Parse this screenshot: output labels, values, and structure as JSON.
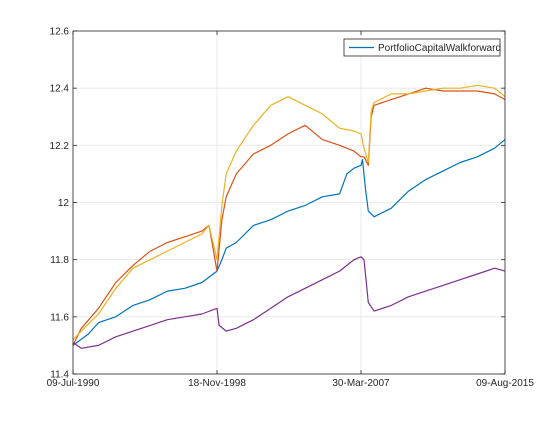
{
  "chart_data": {
    "type": "line",
    "title": "",
    "xlabel": "",
    "ylabel": "",
    "x_tick_labels": [
      "09-Jul-1990",
      "18-Nov-1998",
      "30-Mar-2007",
      "09-Aug-2015"
    ],
    "x_ticks": [
      "1990-07-09",
      "1998-11-18",
      "2007-03-30",
      "2015-08-09"
    ],
    "xlim": [
      "1990-07-09",
      "2015-08-09"
    ],
    "ylim": [
      11.4,
      12.6
    ],
    "y_ticks": [
      11.4,
      11.6,
      11.8,
      12,
      12.2,
      12.4,
      12.6
    ],
    "y_tick_labels": [
      "11.4",
      "11.6",
      "11.8",
      "12",
      "12.2",
      "12.4",
      "12.6"
    ],
    "grid": true,
    "legend_position": "top-right",
    "legend": [
      "PortfolioCapitalWalkforward"
    ],
    "series": [
      {
        "name": "PortfolioCapitalWalkforward",
        "color": "#0072BD",
        "x": [
          "1990-07-09",
          "1991-06-01",
          "1992-01-01",
          "1993-01-01",
          "1994-01-01",
          "1995-01-01",
          "1996-01-01",
          "1997-01-01",
          "1998-01-01",
          "1998-11-18",
          "1999-03-01",
          "1999-06-01",
          "2000-01-01",
          "2001-01-01",
          "2002-01-01",
          "2003-01-01",
          "2004-01-01",
          "2005-01-01",
          "2006-01-01",
          "2006-06-01",
          "2006-11-01",
          "2007-03-30",
          "2007-05-01",
          "2007-07-01",
          "2007-09-01",
          "2008-01-01",
          "2009-01-01",
          "2010-01-01",
          "2011-01-01",
          "2012-01-01",
          "2013-01-01",
          "2014-01-01",
          "2015-01-01",
          "2015-08-09"
        ],
        "values": [
          11.5,
          11.54,
          11.58,
          11.6,
          11.64,
          11.66,
          11.69,
          11.7,
          11.72,
          11.76,
          11.8,
          11.84,
          11.86,
          11.92,
          11.94,
          11.97,
          11.99,
          12.02,
          12.03,
          12.1,
          12.12,
          12.13,
          12.15,
          12.05,
          11.97,
          11.95,
          11.98,
          12.04,
          12.08,
          12.11,
          12.14,
          12.16,
          12.19,
          12.22
        ]
      },
      {
        "name": "",
        "color": "#D95319",
        "x": [
          "1990-07-09",
          "1991-01-01",
          "1992-01-01",
          "1993-01-01",
          "1994-01-01",
          "1995-01-01",
          "1996-01-01",
          "1997-01-01",
          "1998-01-01",
          "1998-06-01",
          "1998-11-18",
          "1999-03-01",
          "1999-06-01",
          "2000-01-01",
          "2001-01-01",
          "2002-01-01",
          "2003-01-01",
          "2004-01-01",
          "2005-01-01",
          "2006-01-01",
          "2006-11-01",
          "2007-03-30",
          "2007-06-01",
          "2007-09-01",
          "2007-11-01",
          "2008-01-01",
          "2009-01-01",
          "2010-01-01",
          "2011-01-01",
          "2012-01-01",
          "2013-01-01",
          "2014-01-01",
          "2015-01-01",
          "2015-08-09"
        ],
        "values": [
          11.5,
          11.56,
          11.63,
          11.72,
          11.78,
          11.83,
          11.86,
          11.88,
          11.9,
          11.92,
          11.76,
          11.94,
          12.02,
          12.1,
          12.17,
          12.2,
          12.24,
          12.27,
          12.22,
          12.2,
          12.18,
          12.16,
          12.16,
          12.13,
          12.3,
          12.34,
          12.36,
          12.38,
          12.4,
          12.39,
          12.39,
          12.39,
          12.38,
          12.36
        ]
      },
      {
        "name": "",
        "color": "#EDB120",
        "x": [
          "1990-07-09",
          "1991-01-01",
          "1992-01-01",
          "1993-01-01",
          "1994-01-01",
          "1995-01-01",
          "1996-01-01",
          "1997-01-01",
          "1998-01-01",
          "1998-06-01",
          "1998-11-18",
          "1999-03-01",
          "1999-06-01",
          "2000-01-01",
          "2001-01-01",
          "2002-01-01",
          "2003-01-01",
          "2004-01-01",
          "2005-01-01",
          "2006-01-01",
          "2006-11-01",
          "2007-03-30",
          "2007-06-01",
          "2007-09-01",
          "2007-11-01",
          "2008-01-01",
          "2009-01-01",
          "2010-01-01",
          "2011-01-01",
          "2012-01-01",
          "2013-01-01",
          "2014-01-01",
          "2015-01-01",
          "2015-08-09"
        ],
        "values": [
          11.52,
          11.55,
          11.61,
          11.7,
          11.77,
          11.8,
          11.83,
          11.86,
          11.89,
          11.92,
          11.8,
          11.99,
          12.1,
          12.18,
          12.27,
          12.34,
          12.37,
          12.34,
          12.31,
          12.26,
          12.25,
          12.24,
          12.19,
          12.14,
          12.32,
          12.35,
          12.38,
          12.38,
          12.39,
          12.4,
          12.4,
          12.41,
          12.4,
          12.37
        ]
      },
      {
        "name": "",
        "color": "#7E2F8E",
        "x": [
          "1990-07-09",
          "1991-01-01",
          "1992-01-01",
          "1993-01-01",
          "1994-01-01",
          "1995-01-01",
          "1996-01-01",
          "1997-01-01",
          "1998-01-01",
          "1998-11-18",
          "1999-01-01",
          "1999-06-01",
          "2000-01-01",
          "2001-01-01",
          "2002-01-01",
          "2003-01-01",
          "2004-01-01",
          "2005-01-01",
          "2006-01-01",
          "2006-06-01",
          "2006-11-01",
          "2007-03-30",
          "2007-06-01",
          "2007-09-01",
          "2008-01-01",
          "2009-01-01",
          "2010-01-01",
          "2011-01-01",
          "2012-01-01",
          "2013-01-01",
          "2014-01-01",
          "2015-01-01",
          "2015-08-09"
        ],
        "values": [
          11.51,
          11.49,
          11.5,
          11.53,
          11.55,
          11.57,
          11.59,
          11.6,
          11.61,
          11.63,
          11.57,
          11.55,
          11.56,
          11.59,
          11.63,
          11.67,
          11.7,
          11.73,
          11.76,
          11.78,
          11.8,
          11.81,
          11.8,
          11.65,
          11.62,
          11.64,
          11.67,
          11.69,
          11.71,
          11.73,
          11.75,
          11.77,
          11.76
        ]
      }
    ]
  }
}
